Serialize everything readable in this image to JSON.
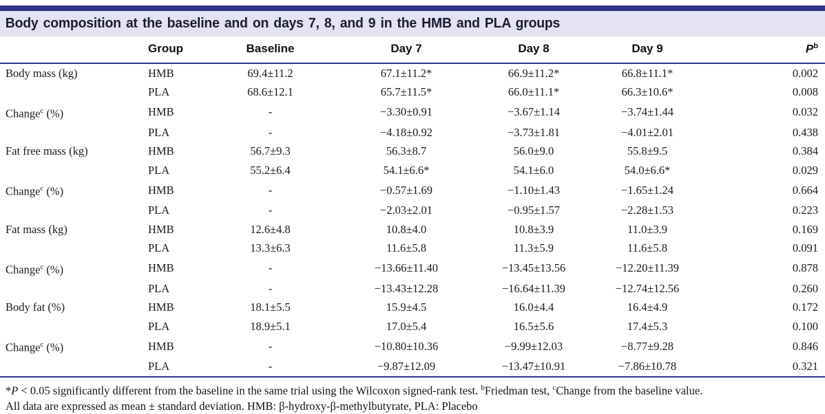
{
  "colors": {
    "navy_rule": "#2e3487",
    "title_band_bg": "#e3e3f1",
    "title_text": "#1b1b35"
  },
  "title": "Body composition at the baseline and on days 7, 8, and 9 in the HMB and PLA groups",
  "table": {
    "headers": {
      "parameter": "",
      "group": "Group",
      "baseline": "Baseline",
      "day7": "Day 7",
      "day8": "Day 8",
      "day9": "Day 9",
      "p_label": "P",
      "p_sup": "b"
    },
    "rows": [
      {
        "label": "Body mass (kg)",
        "sup": "",
        "suffix": "",
        "group": "HMB",
        "baseline": "69.4±11.2",
        "day7": "67.1±11.2*",
        "day8": "66.9±11.2*",
        "day9": "66.8±11.1*",
        "p": "0.002"
      },
      {
        "label": "",
        "sup": "",
        "suffix": "",
        "group": "PLA",
        "baseline": "68.6±12.1",
        "day7": "65.7±11.5*",
        "day8": "66.0±11.1*",
        "day9": "66.3±10.6*",
        "p": "0.008"
      },
      {
        "label": "Change",
        "sup": "c",
        "suffix": " (%)",
        "group": "HMB",
        "baseline": "-",
        "day7": "−3.30±0.91",
        "day8": "−3.67±1.14",
        "day9": "−3.74±1.44",
        "p": "0.032"
      },
      {
        "label": "",
        "sup": "",
        "suffix": "",
        "group": "PLA",
        "baseline": "-",
        "day7": "−4.18±0.92",
        "day8": "−3.73±1.81",
        "day9": "−4.01±2.01",
        "p": "0.438"
      },
      {
        "label": "Fat free mass (kg)",
        "sup": "",
        "suffix": "",
        "group": "HMB",
        "baseline": "56.7±9.3",
        "day7": "56.3±8.7",
        "day8": "56.0±9.0",
        "day9": "55.8±9.5",
        "p": "0.384"
      },
      {
        "label": "",
        "sup": "",
        "suffix": "",
        "group": "PLA",
        "baseline": "55.2±6.4",
        "day7": "54.1±6.6*",
        "day8": "54.1±6.0",
        "day9": "54.0±6.6*",
        "p": "0.029"
      },
      {
        "label": "Change",
        "sup": "c",
        "suffix": " (%)",
        "group": "HMB",
        "baseline": "-",
        "day7": "−0.57±1.69",
        "day8": "−1.10±1.43",
        "day9": "−1.65±1.24",
        "p": "0.664"
      },
      {
        "label": "",
        "sup": "",
        "suffix": "",
        "group": "PLA",
        "baseline": "-",
        "day7": "−2.03±2.01",
        "day8": "−0.95±1.57",
        "day9": "−2.28±1.53",
        "p": "0.223"
      },
      {
        "label": "Fat mass (kg)",
        "sup": "",
        "suffix": "",
        "group": "HMB",
        "baseline": "12.6±4.8",
        "day7": "10.8±4.0",
        "day8": "10.8±3.9",
        "day9": "11.0±3.9",
        "p": "0.169"
      },
      {
        "label": "",
        "sup": "",
        "suffix": "",
        "group": "PLA",
        "baseline": "13.3±6.3",
        "day7": "11.6±5.8",
        "day8": "11.3±5.9",
        "day9": "11.6±5.8",
        "p": "0.091"
      },
      {
        "label": "Change",
        "sup": "c",
        "suffix": " (%)",
        "group": "HMB",
        "baseline": "-",
        "day7": "−13.66±11.40",
        "day8": "−13.45±13.56",
        "day9": "−12.20±11.39",
        "p": "0.878"
      },
      {
        "label": "",
        "sup": "",
        "suffix": "",
        "group": "PLA",
        "baseline": "-",
        "day7": "−13.43±12.28",
        "day8": "−16.64±11.39",
        "day9": "−12.74±12.56",
        "p": "0.260"
      },
      {
        "label": "Body fat (%)",
        "sup": "",
        "suffix": "",
        "group": "HMB",
        "baseline": "18.1±5.5",
        "day7": "15.9±4.5",
        "day8": "16.0±4.4",
        "day9": "16.4±4.9",
        "p": "0.172"
      },
      {
        "label": "",
        "sup": "",
        "suffix": "",
        "group": "PLA",
        "baseline": "18.9±5.1",
        "day7": "17.0±5.4",
        "day8": "16.5±5.6",
        "day9": "17.4±5.3",
        "p": "0.100"
      },
      {
        "label": "Change",
        "sup": "c",
        "suffix": " (%)",
        "group": "HMB",
        "baseline": "-",
        "day7": "−10.80±10.36",
        "day8": "−9.99±12.03",
        "day9": "−8.77±9.28",
        "p": "0.846"
      },
      {
        "label": "",
        "sup": "",
        "suffix": "",
        "group": "PLA",
        "baseline": "-",
        "day7": "−9.87±12.09",
        "day8": "−13.47±10.91",
        "day9": "−7.86±10.78",
        "p": "0.321"
      }
    ]
  },
  "footnotes": {
    "star": "*",
    "p_italic": "P",
    "line1_rest": " < 0.05 significantly different from the baseline in the same trial using the Wilcoxon signed-rank test. ",
    "sup_b": "b",
    "friedman": "Friedman test, ",
    "sup_c": "c",
    "change_note": "Change from the baseline value.",
    "line2": "All data are expressed as mean ± standard deviation. HMB: β-hydroxy-β-methylbutyrate, PLA: Placebo"
  }
}
